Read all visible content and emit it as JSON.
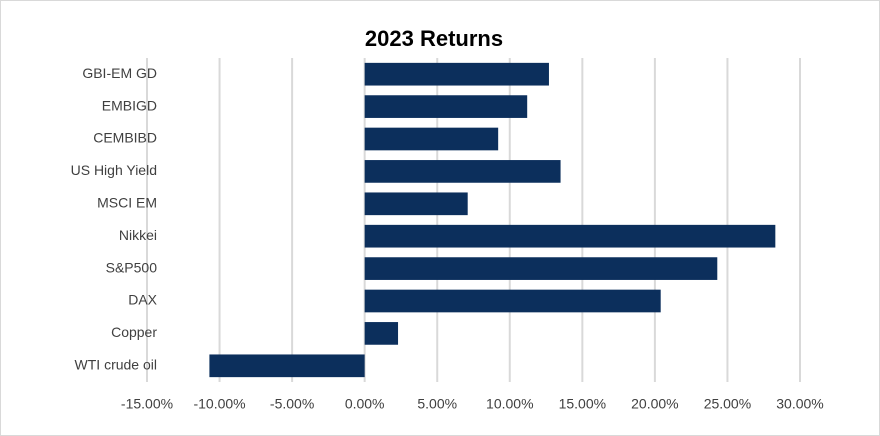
{
  "chart_data": {
    "type": "bar",
    "title": "2023 Returns",
    "categories": [
      "GBI-EM GD",
      "EMBIGD",
      "CEMBIBD",
      "US High Yield",
      "MSCI EM",
      "Nikkei",
      "S&P500",
      "DAX",
      "Copper",
      "WTI crude oil"
    ],
    "values": [
      12.7,
      11.2,
      9.2,
      13.5,
      7.1,
      28.3,
      24.3,
      20.4,
      2.3,
      -10.7
    ],
    "color": "#0c2f5c",
    "xlim": [
      -15,
      30
    ],
    "xticks": [
      {
        "value": -15,
        "label": "-15.00%"
      },
      {
        "value": -10,
        "label": "-10.00%"
      },
      {
        "value": -5,
        "label": "-5.00%"
      },
      {
        "value": 0,
        "label": "0.00%"
      },
      {
        "value": 5,
        "label": "5.00%"
      },
      {
        "value": 10,
        "label": "10.00%"
      },
      {
        "value": 15,
        "label": "15.00%"
      },
      {
        "value": 20,
        "label": "20.00%"
      },
      {
        "value": 25,
        "label": "25.00%"
      },
      {
        "value": 30,
        "label": "30.00%"
      }
    ],
    "grid": true
  }
}
